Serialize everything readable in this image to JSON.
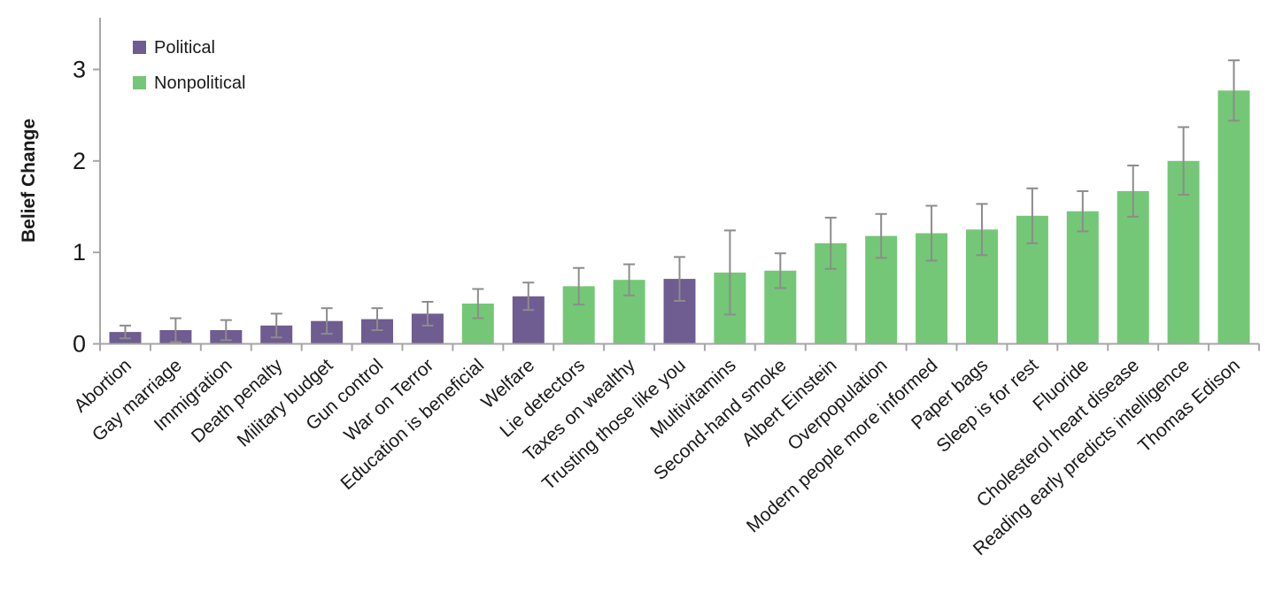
{
  "chart_data": {
    "type": "bar",
    "title": "",
    "xlabel": "",
    "ylabel": "Belief Change",
    "ylim": [
      0,
      3.5
    ],
    "yticks": [
      0,
      1,
      2,
      3
    ],
    "grid": false,
    "error_bars": true,
    "legend_position": "top-left",
    "legend": [
      {
        "name": "Political",
        "color": "#6f5c90"
      },
      {
        "name": "Nonpolitical",
        "color": "#74c776"
      }
    ],
    "colors": {
      "axis": "#a6a6a6",
      "error_bar": "#8c8c8c",
      "text": "#1a1a1a"
    },
    "categories": [
      "Abortion",
      "Gay marriage",
      "Immigration",
      "Death penalty",
      "Military budget",
      "Gun control",
      "War on Terror",
      "Education is beneficial",
      "Welfare",
      "Lie detectors",
      "Taxes on wealthy",
      "Trusting those like you",
      "Multivitamins",
      "Second-hand smoke",
      "Albert Einstein",
      "Overpopulation",
      "Modern people more informed",
      "Paper bags",
      "Sleep is for rest",
      "Fluoride",
      "Cholesterol heart disease",
      "Reading early predicts intelligence",
      "Thomas Edison"
    ],
    "bar_series": [
      "Political",
      "Political",
      "Political",
      "Political",
      "Political",
      "Political",
      "Political",
      "Nonpolitical",
      "Political",
      "Nonpolitical",
      "Nonpolitical",
      "Political",
      "Nonpolitical",
      "Nonpolitical",
      "Nonpolitical",
      "Nonpolitical",
      "Nonpolitical",
      "Nonpolitical",
      "Nonpolitical",
      "Nonpolitical",
      "Nonpolitical",
      "Nonpolitical",
      "Nonpolitical"
    ],
    "values": [
      0.13,
      0.15,
      0.15,
      0.2,
      0.25,
      0.27,
      0.33,
      0.44,
      0.52,
      0.63,
      0.7,
      0.71,
      0.78,
      0.8,
      1.1,
      1.18,
      1.21,
      1.25,
      1.4,
      1.45,
      1.67,
      2.0,
      2.77
    ],
    "errors": [
      0.07,
      0.13,
      0.11,
      0.13,
      0.14,
      0.12,
      0.13,
      0.16,
      0.15,
      0.2,
      0.17,
      0.24,
      0.46,
      0.19,
      0.28,
      0.24,
      0.3,
      0.28,
      0.3,
      0.22,
      0.28,
      0.37,
      0.33
    ]
  }
}
